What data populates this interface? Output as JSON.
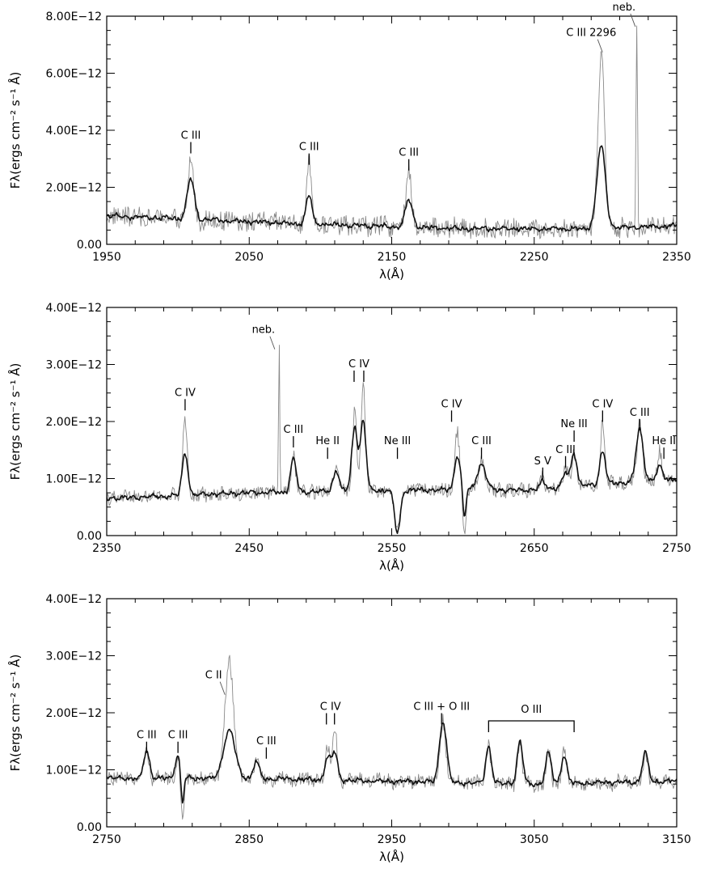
{
  "chart_data": [
    {
      "type": "line",
      "xlabel": "λ(Å)",
      "ylabel": "Fλ(ergs cm⁻² s⁻¹ Å)",
      "xlim": [
        1950,
        2350
      ],
      "ylim": [
        0,
        8e-12
      ],
      "xticks": [
        1950,
        2050,
        2150,
        2250,
        2350
      ],
      "yticks": [
        0,
        2e-12,
        4e-12,
        6e-12,
        8e-12
      ],
      "ytick_labels": [
        "0.00",
        "2.00E−12",
        "4.00E−12",
        "6.00E−12",
        "8.00E−12"
      ],
      "continuum": [
        [
          1950,
          1e-12
        ],
        [
          2000,
          9e-13
        ],
        [
          2100,
          7e-13
        ],
        [
          2200,
          5.5e-13
        ],
        [
          2280,
          5.5e-13
        ],
        [
          2350,
          6.5e-13
        ]
      ],
      "features": [
        {
          "x": 2009,
          "model": 2.3e-12,
          "obs": 3e-12,
          "w": 2.5
        },
        {
          "x": 2092,
          "model": 1.75e-12,
          "obs": 2.85e-12,
          "w": 2.0
        },
        {
          "x": 2162,
          "model": 1.55e-12,
          "obs": 2.6e-12,
          "w": 2.5
        },
        {
          "x": 2297,
          "model": 3.45e-12,
          "obs": 6.7e-12,
          "w": 3.0
        },
        {
          "x": 2322,
          "model": 7e-13,
          "obs": 8e-12,
          "w": 1.0,
          "obs_only": true
        }
      ],
      "annotations": [
        {
          "label": "C III",
          "x": 2009,
          "y": 3.7e-12
        },
        {
          "label": "C III",
          "x": 2092,
          "y": 3.3e-12
        },
        {
          "label": "C III",
          "x": 2162,
          "y": 3.1e-12
        },
        {
          "label": "C III 2296",
          "x": 2290,
          "y": 7.3e-12
        },
        {
          "label": "neb.",
          "x": 2313,
          "y": 8.2e-12
        }
      ]
    },
    {
      "type": "line",
      "xlabel": "λ(Å)",
      "ylabel": "Fλ(ergs cm⁻² s⁻¹ Å)",
      "xlim": [
        2350,
        2750
      ],
      "ylim": [
        0,
        4e-12
      ],
      "xticks": [
        2350,
        2450,
        2550,
        2650,
        2750
      ],
      "yticks": [
        0,
        1e-12,
        2e-12,
        3e-12,
        4e-12
      ],
      "ytick_labels": [
        "0.00",
        "1.00E−12",
        "2.00E−12",
        "3.00E−12",
        "4.00E−12"
      ],
      "continuum": [
        [
          2350,
          6.5e-13
        ],
        [
          2450,
          7.5e-13
        ],
        [
          2550,
          8e-13
        ],
        [
          2650,
          8e-13
        ],
        [
          2750,
          1e-12
        ]
      ],
      "features": [
        {
          "x": 2405,
          "model": 1.45e-12,
          "obs": 2.1e-12,
          "w": 2.0
        },
        {
          "x": 2471,
          "model": 7.8e-13,
          "obs": 3.45e-12,
          "w": 0.8,
          "obs_only": true
        },
        {
          "x": 2481,
          "model": 1.35e-12,
          "obs": 1.4e-12,
          "w": 2.0
        },
        {
          "x": 2511,
          "model": 1.15e-12,
          "obs": 1.3e-12,
          "w": 2.0
        },
        {
          "x": 2524,
          "model": 1.9e-12,
          "obs": 2.2e-12,
          "w": 2.0
        },
        {
          "x": 2530,
          "model": 2e-12,
          "obs": 2.6e-12,
          "w": 2.0
        },
        {
          "x": 2554,
          "model": 5e-14,
          "obs": 1.5e-13,
          "w": 2.0,
          "absorb": true
        },
        {
          "x": 2596,
          "model": 1.4e-12,
          "obs": 1.85e-12,
          "w": 2.0
        },
        {
          "x": 2601,
          "model": 3e-13,
          "obs": 2e-14,
          "w": 1.0,
          "absorb": true
        },
        {
          "x": 2613,
          "model": 1.25e-12,
          "obs": 1.3e-12,
          "w": 3.0
        },
        {
          "x": 2656,
          "model": 9.5e-13,
          "obs": 1e-12,
          "w": 2.0
        },
        {
          "x": 2672,
          "model": 1.1e-12,
          "obs": 1.25e-12,
          "w": 2.0
        },
        {
          "x": 2678,
          "model": 1.45e-12,
          "obs": 1.5e-12,
          "w": 2.0
        },
        {
          "x": 2698,
          "model": 1.5e-12,
          "obs": 2e-12,
          "w": 2.0
        },
        {
          "x": 2724,
          "model": 1.85e-12,
          "obs": 1.9e-12,
          "w": 2.5
        },
        {
          "x": 2738,
          "model": 1.2e-12,
          "obs": 1.45e-12,
          "w": 2.0
        }
      ],
      "annotations": [
        {
          "label": "C IV",
          "x": 2405,
          "y": 2.45e-12
        },
        {
          "label": "neb.",
          "x": 2460,
          "y": 3.55e-12
        },
        {
          "label": "C III",
          "x": 2481,
          "y": 1.8e-12
        },
        {
          "label": "He II",
          "x": 2505,
          "y": 1.6e-12
        },
        {
          "label": "C IV",
          "x": 2527,
          "y": 2.95e-12
        },
        {
          "label": "Ne III",
          "x": 2554,
          "y": 1.6e-12
        },
        {
          "label": "C IV",
          "x": 2592,
          "y": 2.25e-12
        },
        {
          "label": "C III",
          "x": 2613,
          "y": 1.6e-12
        },
        {
          "label": "S V",
          "x": 2656,
          "y": 1.25e-12
        },
        {
          "label": "C III",
          "x": 2672,
          "y": 1.45e-12
        },
        {
          "label": "Ne III",
          "x": 2678,
          "y": 1.9e-12
        },
        {
          "label": "C IV",
          "x": 2698,
          "y": 2.25e-12
        },
        {
          "label": "C III",
          "x": 2724,
          "y": 2.1e-12
        },
        {
          "label": "He II",
          "x": 2741,
          "y": 1.6e-12
        }
      ]
    },
    {
      "type": "line",
      "xlabel": "λ(Å)",
      "ylabel": "Fλ(ergs cm⁻² s⁻¹ Å)",
      "xlim": [
        2750,
        3150
      ],
      "ylim": [
        0,
        4e-12
      ],
      "xticks": [
        2750,
        2850,
        2950,
        3050,
        3150
      ],
      "yticks": [
        0,
        1e-12,
        2e-12,
        3e-12,
        4e-12
      ],
      "ytick_labels": [
        "0.00",
        "1.00E−12",
        "2.00E−12",
        "3.00E−12",
        "4.00E−12"
      ],
      "continuum": [
        [
          2750,
          8.5e-13
        ],
        [
          2850,
          8.5e-13
        ],
        [
          2950,
          8e-13
        ],
        [
          3050,
          7.5e-13
        ],
        [
          3150,
          8e-13
        ]
      ],
      "features": [
        {
          "x": 2778,
          "model": 1.35e-12,
          "obs": 1.35e-12,
          "w": 2.0
        },
        {
          "x": 2800,
          "model": 1.25e-12,
          "obs": 1.25e-12,
          "w": 2.0
        },
        {
          "x": 2803,
          "model": 3e-13,
          "obs": 5e-14,
          "w": 1.0,
          "absorb": true
        },
        {
          "x": 2836,
          "model": 1.7e-12,
          "obs": 2.9e-12,
          "w": 4.0
        },
        {
          "x": 2855,
          "model": 1.15e-12,
          "obs": 1.15e-12,
          "w": 2.0
        },
        {
          "x": 2905,
          "model": 1.2e-12,
          "obs": 1.4e-12,
          "w": 2.0
        },
        {
          "x": 2910,
          "model": 1.3e-12,
          "obs": 1.75e-12,
          "w": 2.0
        },
        {
          "x": 2986,
          "model": 1.85e-12,
          "obs": 1.9e-12,
          "w": 2.5
        },
        {
          "x": 3018,
          "model": 1.4e-12,
          "obs": 1.4e-12,
          "w": 2.0
        },
        {
          "x": 3040,
          "model": 1.5e-12,
          "obs": 1.5e-12,
          "w": 2.0
        },
        {
          "x": 3060,
          "model": 1.3e-12,
          "obs": 1.3e-12,
          "w": 2.0
        },
        {
          "x": 3071,
          "model": 1.25e-12,
          "obs": 1.35e-12,
          "w": 2.0
        },
        {
          "x": 3128,
          "model": 1.3e-12,
          "obs": 1.3e-12,
          "w": 2.0
        }
      ],
      "annotations": [
        {
          "label": "C III",
          "x": 2778,
          "y": 1.55e-12
        },
        {
          "label": "C III",
          "x": 2800,
          "y": 1.55e-12
        },
        {
          "label": "C II",
          "x": 2825,
          "y": 2.6e-12
        },
        {
          "label": "C III",
          "x": 2862,
          "y": 1.45e-12
        },
        {
          "label": "C IV",
          "x": 2907,
          "y": 2.05e-12
        },
        {
          "label": "C III + O III",
          "x": 2985,
          "y": 2.05e-12
        },
        {
          "label": "O III",
          "x": 3048,
          "y": 2e-12
        }
      ]
    }
  ]
}
